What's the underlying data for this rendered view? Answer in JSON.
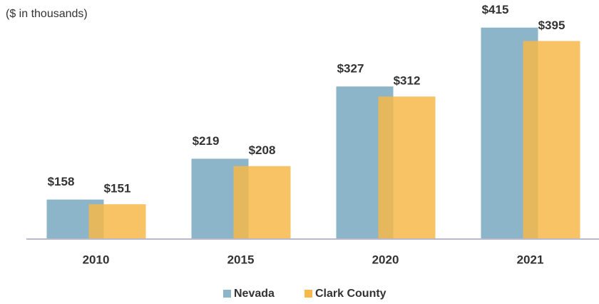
{
  "chart_data": {
    "type": "bar",
    "subtitle": "($ in thousands)",
    "categories": [
      "2010",
      "2015",
      "2020",
      "2021"
    ],
    "series": [
      {
        "name": "Nevada",
        "color": "#8db5c9",
        "values": [
          158,
          219,
          327,
          415
        ],
        "value_labels": [
          "$158",
          "$219",
          "$327",
          "$415"
        ]
      },
      {
        "name": "Clark County",
        "color": "#f6b94a",
        "values": [
          151,
          208,
          312,
          395
        ],
        "value_labels": [
          "$151",
          "$208",
          "$312",
          "$395"
        ]
      }
    ],
    "ylim": [
      100,
      420
    ],
    "legend": "bottom"
  }
}
